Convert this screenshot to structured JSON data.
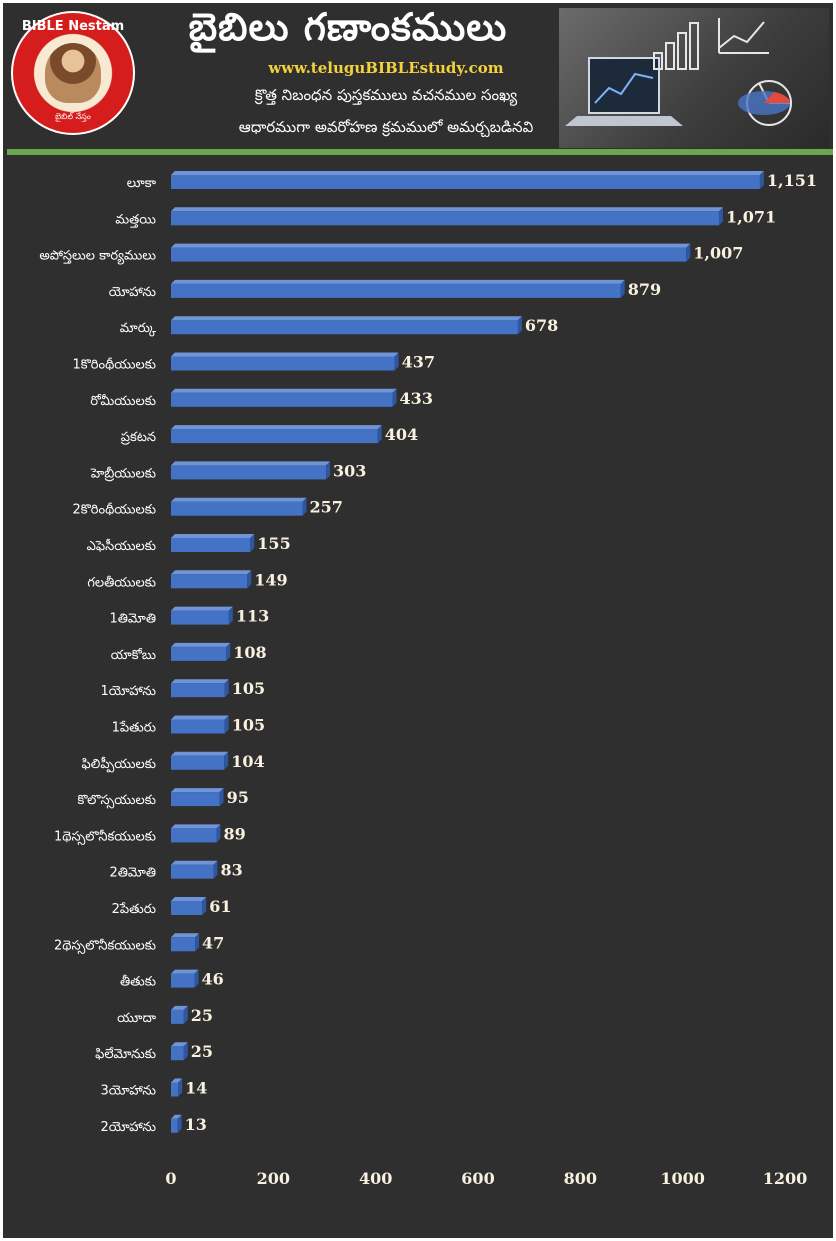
{
  "header": {
    "title": "బైబిలు గణాంకములు",
    "site": "www.teluguBIBLEstudy.com",
    "subtitle_line1": "క్రొత్త నిబంధన పుస్తకములు వచనముల సంఖ్య",
    "subtitle_line2": "ఆధారముగా అవరోహణ క్రమములో అమర్చబడినవి",
    "logo_top_text": "BIBLE Nestam",
    "logo_bottom_text": "బైబిల్ నేస్తం"
  },
  "colors": {
    "background": "#2f2f2f",
    "bar": "#4472c4",
    "accent_line": "#6aa84f",
    "site_text": "#f4d23c"
  },
  "chart_data": {
    "type": "bar",
    "orientation": "horizontal",
    "title": "",
    "xlabel": "",
    "ylabel": "",
    "xlim": [
      0,
      1200
    ],
    "x_ticks": [
      0,
      200,
      400,
      600,
      800,
      1000,
      1200
    ],
    "grid": false,
    "categories": [
      "లూకా",
      "మత్తయి",
      "అపోస్తలుల కార్యములు",
      "యోహాను",
      "మార్కు",
      "1కొరింథీయులకు",
      "రోమీయులకు",
      "ప్రకటన",
      "హెబ్రీయులకు",
      "2కొరింథీయులకు",
      "ఎఫెసీయులకు",
      "గలతీయులకు",
      "1తిమోతి",
      "యాకోబు",
      "1యోహాను",
      "1పేతురు",
      "ఫిలిప్పీయులకు",
      "కొలొస్సయులకు",
      "1థెస్సలొనీకయులకు",
      "2తిమోతి",
      "2పేతురు",
      "2థెస్సలొనీకయులకు",
      "తీతుకు",
      "యూదా",
      "ఫిలేమోనుకు",
      "3యోహాను",
      "2యోహాను"
    ],
    "values": [
      1151,
      1071,
      1007,
      879,
      678,
      437,
      433,
      404,
      303,
      257,
      155,
      149,
      113,
      108,
      105,
      105,
      104,
      95,
      89,
      83,
      61,
      47,
      46,
      25,
      25,
      14,
      13
    ],
    "value_labels": [
      "1,151",
      "1,071",
      "1,007",
      "879",
      "678",
      "437",
      "433",
      "404",
      "303",
      "257",
      "155",
      "149",
      "113",
      "108",
      "105",
      "105",
      "104",
      "95",
      "89",
      "83",
      "61",
      "47",
      "46",
      "25",
      "25",
      "14",
      "13"
    ]
  }
}
